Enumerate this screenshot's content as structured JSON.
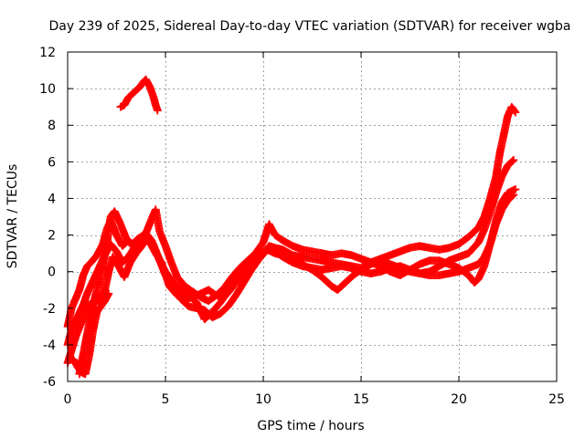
{
  "chart_data": {
    "type": "scatter",
    "title": "Day 239 of 2025, Sidereal Day-to-day VTEC variation (SDTVAR) for receiver wgba",
    "xlabel": "GPS time / hours",
    "ylabel": "SDTVAR / TECUs",
    "xlim": [
      0,
      25
    ],
    "ylim": [
      -6,
      12
    ],
    "xticks": [
      0,
      5,
      10,
      15,
      20,
      25
    ],
    "yticks": [
      -6,
      -4,
      -2,
      0,
      2,
      4,
      6,
      8,
      10,
      12
    ],
    "grid": true,
    "marker": "+",
    "color": "#ff0000",
    "series": [
      {
        "name": "track-1",
        "points": [
          [
            0.0,
            -3.0
          ],
          [
            0.2,
            -2.0
          ],
          [
            0.4,
            -1.5
          ],
          [
            0.6,
            -1.0
          ],
          [
            0.8,
            -0.2
          ],
          [
            1.0,
            0.3
          ],
          [
            1.2,
            0.5
          ],
          [
            1.5,
            0.9
          ],
          [
            1.8,
            1.5
          ],
          [
            2.0,
            2.3
          ],
          [
            2.2,
            2.8
          ],
          [
            2.5,
            2.0
          ],
          [
            2.8,
            1.4
          ],
          [
            3.1,
            1.7
          ],
          [
            3.4,
            1.3
          ],
          [
            3.7,
            1.6
          ],
          [
            4.0,
            2.0
          ],
          [
            4.2,
            1.6
          ],
          [
            4.5,
            1.0
          ],
          [
            4.8,
            0.5
          ],
          [
            5.2,
            -0.8
          ],
          [
            5.6,
            -1.3
          ],
          [
            6.0,
            -1.5
          ],
          [
            6.4,
            -1.4
          ],
          [
            6.8,
            -1.2
          ],
          [
            7.2,
            -1.0
          ],
          [
            7.6,
            -1.3
          ],
          [
            8.0,
            -1.4
          ],
          [
            8.4,
            -0.9
          ],
          [
            8.8,
            -0.2
          ],
          [
            9.2,
            0.2
          ],
          [
            9.6,
            0.6
          ],
          [
            10.0,
            1.0
          ],
          [
            10.3,
            1.4
          ],
          [
            10.6,
            1.3
          ],
          [
            11.0,
            1.2
          ],
          [
            11.5,
            0.9
          ],
          [
            12.0,
            0.8
          ],
          [
            12.5,
            0.7
          ],
          [
            13.0,
            0.6
          ],
          [
            13.5,
            0.5
          ],
          [
            14.0,
            0.4
          ],
          [
            14.5,
            0.3
          ],
          [
            15.0,
            0.2
          ],
          [
            15.5,
            0.5
          ],
          [
            16.0,
            0.7
          ],
          [
            16.5,
            0.9
          ],
          [
            17.0,
            1.1
          ],
          [
            17.5,
            1.3
          ],
          [
            18.0,
            1.4
          ],
          [
            18.5,
            1.3
          ],
          [
            19.0,
            1.2
          ],
          [
            19.5,
            1.3
          ],
          [
            20.0,
            1.5
          ],
          [
            20.5,
            1.9
          ],
          [
            21.0,
            2.4
          ],
          [
            21.3,
            3.0
          ],
          [
            21.6,
            4.0
          ],
          [
            21.9,
            5.2
          ],
          [
            22.1,
            6.5
          ],
          [
            22.3,
            7.5
          ],
          [
            22.5,
            8.5
          ],
          [
            22.7,
            9.0
          ],
          [
            22.9,
            8.7
          ]
        ]
      },
      {
        "name": "track-2",
        "points": [
          [
            0.0,
            -4.0
          ],
          [
            0.2,
            -3.2
          ],
          [
            0.5,
            -2.5
          ],
          [
            0.8,
            -1.8
          ],
          [
            1.0,
            -1.2
          ],
          [
            1.3,
            -0.5
          ],
          [
            1.6,
            0.2
          ],
          [
            1.9,
            0.9
          ],
          [
            2.2,
            1.5
          ],
          [
            2.5,
            1.1
          ],
          [
            2.8,
            0.5
          ],
          [
            3.1,
            0.8
          ],
          [
            3.4,
            1.3
          ],
          [
            3.7,
            1.8
          ],
          [
            4.0,
            2.1
          ],
          [
            4.3,
            1.7
          ],
          [
            4.6,
            0.9
          ],
          [
            5.0,
            -0.2
          ],
          [
            5.4,
            -0.9
          ],
          [
            5.8,
            -1.5
          ],
          [
            6.2,
            -1.9
          ],
          [
            6.6,
            -2.0
          ],
          [
            7.0,
            -2.1
          ],
          [
            7.4,
            -2.5
          ],
          [
            7.8,
            -2.3
          ],
          [
            8.2,
            -1.9
          ],
          [
            8.6,
            -1.3
          ],
          [
            9.0,
            -0.6
          ],
          [
            9.4,
            0.1
          ],
          [
            9.8,
            0.7
          ],
          [
            10.2,
            1.2
          ],
          [
            10.6,
            1.1
          ],
          [
            11.0,
            0.8
          ],
          [
            11.5,
            0.5
          ],
          [
            12.0,
            0.3
          ],
          [
            12.5,
            0.2
          ],
          [
            13.0,
            0.1
          ],
          [
            13.5,
            0.2
          ],
          [
            14.0,
            0.3
          ],
          [
            14.5,
            0.2
          ],
          [
            15.0,
            0.0
          ],
          [
            15.5,
            -0.1
          ],
          [
            16.0,
            0.0
          ],
          [
            16.5,
            0.2
          ],
          [
            17.0,
            0.3
          ],
          [
            17.5,
            0.1
          ],
          [
            18.0,
            -0.1
          ],
          [
            18.5,
            0.0
          ],
          [
            19.0,
            0.3
          ],
          [
            19.5,
            0.6
          ],
          [
            20.0,
            0.8
          ],
          [
            20.5,
            1.0
          ],
          [
            21.0,
            1.6
          ],
          [
            21.3,
            2.3
          ],
          [
            21.6,
            3.2
          ],
          [
            21.9,
            4.3
          ],
          [
            22.2,
            5.2
          ],
          [
            22.5,
            5.8
          ],
          [
            22.8,
            6.1
          ]
        ]
      },
      {
        "name": "track-3",
        "points": [
          [
            0.0,
            -5.0
          ],
          [
            0.2,
            -4.3
          ],
          [
            0.4,
            -3.6
          ],
          [
            0.7,
            -2.8
          ],
          [
            1.0,
            -2.0
          ],
          [
            1.3,
            -1.6
          ],
          [
            1.6,
            -1.6
          ],
          [
            1.9,
            -1.0
          ],
          [
            2.1,
            0.0
          ],
          [
            2.3,
            0.8
          ],
          [
            2.6,
            0.3
          ],
          [
            2.9,
            -0.3
          ],
          [
            3.2,
            0.5
          ],
          [
            3.5,
            1.0
          ],
          [
            3.8,
            1.4
          ],
          [
            4.1,
            1.9
          ],
          [
            4.4,
            1.4
          ],
          [
            4.7,
            0.6
          ],
          [
            5.0,
            0.0
          ],
          [
            5.4,
            -0.6
          ],
          [
            5.8,
            -1.0
          ],
          [
            6.2,
            -1.3
          ],
          [
            6.6,
            -1.7
          ],
          [
            7.0,
            -2.6
          ],
          [
            7.4,
            -2.2
          ],
          [
            7.8,
            -1.7
          ],
          [
            8.2,
            -1.1
          ],
          [
            8.6,
            -0.6
          ],
          [
            9.0,
            -0.1
          ],
          [
            9.4,
            0.4
          ],
          [
            9.8,
            0.9
          ],
          [
            10.2,
            1.2
          ],
          [
            10.6,
            1.0
          ],
          [
            11.0,
            0.9
          ],
          [
            11.5,
            0.6
          ],
          [
            12.0,
            0.4
          ],
          [
            12.5,
            0.1
          ],
          [
            13.0,
            -0.3
          ],
          [
            13.5,
            -0.8
          ],
          [
            13.8,
            -1.0
          ],
          [
            14.2,
            -0.6
          ],
          [
            14.6,
            -0.2
          ],
          [
            15.0,
            0.1
          ],
          [
            15.5,
            0.4
          ],
          [
            16.0,
            0.6
          ],
          [
            16.5,
            0.4
          ],
          [
            17.0,
            0.2
          ],
          [
            17.5,
            0.0
          ],
          [
            18.0,
            -0.1
          ],
          [
            18.5,
            -0.2
          ],
          [
            19.0,
            -0.2
          ],
          [
            19.5,
            -0.1
          ],
          [
            20.0,
            0.0
          ],
          [
            20.5,
            0.2
          ],
          [
            21.0,
            0.4
          ],
          [
            21.3,
            0.8
          ],
          [
            21.6,
            1.5
          ],
          [
            21.9,
            2.6
          ],
          [
            22.2,
            3.4
          ],
          [
            22.5,
            3.9
          ],
          [
            22.8,
            4.2
          ]
        ]
      },
      {
        "name": "track-4",
        "points": [
          [
            0.6,
            -5.6
          ],
          [
            0.8,
            -4.5
          ],
          [
            1.0,
            -3.4
          ],
          [
            1.2,
            -2.3
          ],
          [
            1.4,
            -1.4
          ],
          [
            1.6,
            -0.6
          ],
          [
            1.8,
            0.4
          ],
          [
            2.0,
            1.5
          ],
          [
            2.2,
            3.0
          ],
          [
            2.4,
            3.3
          ],
          [
            2.7,
            2.6
          ],
          [
            3.0,
            1.8
          ],
          [
            3.3,
            1.5
          ],
          [
            3.6,
            1.8
          ],
          [
            4.0,
            2.1
          ],
          [
            4.3,
            2.9
          ],
          [
            4.5,
            3.4
          ],
          [
            4.7,
            2.2
          ],
          [
            5.0,
            1.4
          ],
          [
            5.3,
            0.5
          ],
          [
            5.6,
            -0.3
          ],
          [
            6.0,
            -0.8
          ],
          [
            6.4,
            -1.1
          ],
          [
            6.8,
            -1.4
          ],
          [
            7.2,
            -1.6
          ],
          [
            7.6,
            -1.3
          ],
          [
            8.0,
            -0.9
          ],
          [
            8.4,
            -0.3
          ],
          [
            8.8,
            0.2
          ],
          [
            9.2,
            0.6
          ],
          [
            9.6,
            1.0
          ],
          [
            10.0,
            1.6
          ],
          [
            10.3,
            2.6
          ],
          [
            10.6,
            2.0
          ],
          [
            11.0,
            1.7
          ],
          [
            11.5,
            1.4
          ],
          [
            12.0,
            1.2
          ],
          [
            12.5,
            1.1
          ],
          [
            13.0,
            1.0
          ],
          [
            13.5,
            0.9
          ],
          [
            14.0,
            1.0
          ],
          [
            14.5,
            0.9
          ],
          [
            15.0,
            0.7
          ],
          [
            15.5,
            0.5
          ],
          [
            16.0,
            0.3
          ],
          [
            16.5,
            0.0
          ],
          [
            17.0,
            -0.2
          ],
          [
            17.5,
            0.1
          ],
          [
            18.0,
            0.4
          ],
          [
            18.5,
            0.6
          ],
          [
            19.0,
            0.6
          ],
          [
            19.5,
            0.4
          ],
          [
            20.0,
            0.2
          ],
          [
            20.5,
            -0.2
          ],
          [
            20.8,
            -0.6
          ],
          [
            21.0,
            -0.4
          ],
          [
            21.3,
            0.3
          ],
          [
            21.6,
            1.5
          ],
          [
            21.9,
            2.8
          ],
          [
            22.2,
            3.8
          ],
          [
            22.5,
            4.3
          ],
          [
            22.9,
            4.5
          ]
        ]
      },
      {
        "name": "track-5",
        "points": [
          [
            2.7,
            9.0
          ],
          [
            2.9,
            9.1
          ],
          [
            3.1,
            9.5
          ],
          [
            3.3,
            9.7
          ],
          [
            3.5,
            9.9
          ],
          [
            3.7,
            10.1
          ],
          [
            3.9,
            10.4
          ],
          [
            4.0,
            10.5
          ],
          [
            4.1,
            10.3
          ],
          [
            4.2,
            10.1
          ],
          [
            4.3,
            9.8
          ],
          [
            4.4,
            9.5
          ],
          [
            4.5,
            9.1
          ],
          [
            4.6,
            8.8
          ]
        ]
      },
      {
        "name": "track-6",
        "points": [
          [
            0.3,
            -4.8
          ],
          [
            0.5,
            -5.2
          ],
          [
            0.7,
            -5.5
          ],
          [
            0.9,
            -5.6
          ],
          [
            1.1,
            -4.6
          ],
          [
            1.3,
            -3.2
          ],
          [
            1.5,
            -2.2
          ],
          [
            1.7,
            -1.9
          ],
          [
            1.9,
            -1.6
          ],
          [
            2.1,
            -1.2
          ]
        ]
      }
    ]
  }
}
